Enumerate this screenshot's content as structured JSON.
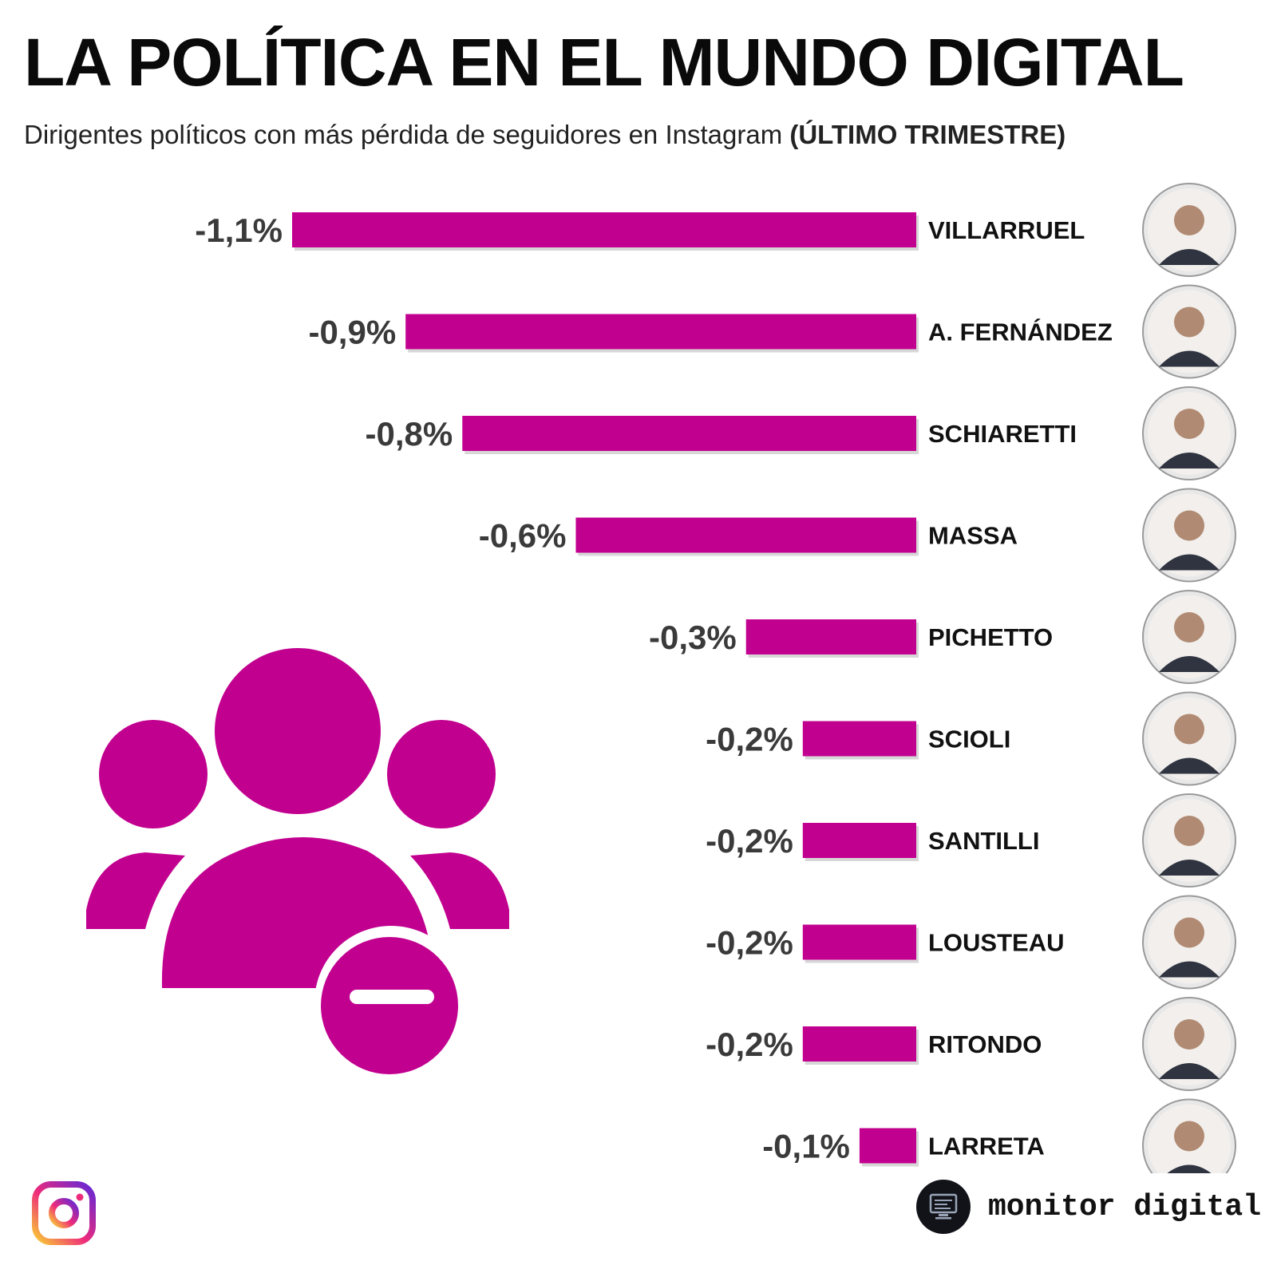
{
  "header": {
    "title": "LA POLÍTICA EN EL MUNDO DIGITAL",
    "subtitle": "Dirigentes políticos con más pérdida de seguidores en Instagram",
    "subtitle_period": "(ÚLTIMO TRIMESTRE)"
  },
  "chart_data": {
    "type": "bar",
    "orientation": "horizontal",
    "categories": [
      "VILLARRUEL",
      "A. FERNÁNDEZ",
      "SCHIARETTI",
      "MASSA",
      "PICHETTO",
      "SCIOLI",
      "SANTILLI",
      "LOUSTEAU",
      "RITONDO",
      "LARRETA"
    ],
    "values": [
      -1.1,
      -0.9,
      -0.8,
      -0.6,
      -0.3,
      -0.2,
      -0.2,
      -0.2,
      -0.2,
      -0.1
    ],
    "labels": [
      "-1,1%",
      "-0,9%",
      "-0,8%",
      "-0,6%",
      "-0,3%",
      "-0,2%",
      "-0,2%",
      "-0,2%",
      "-0,2%",
      "-0,1%"
    ],
    "unit": "%",
    "bar_color": "#c2008f",
    "title": "LA POLÍTICA EN EL MUNDO DIGITAL",
    "subtitle": "Dirigentes políticos con más pérdida de seguidores en Instagram (ÚLTIMO TRIMESTRE)",
    "grid": false,
    "legend": "none"
  },
  "decor": {
    "main_icon": "users-minus-icon",
    "social_icon": "instagram-icon",
    "avatar_icon": "person-avatar-icon",
    "brand_icon": "monitor-icon"
  },
  "footer": {
    "brand": "monitor digital"
  },
  "colors": {
    "accent": "#c2008f",
    "text": "#0a0a0a",
    "value_text": "#3a3a3a"
  }
}
